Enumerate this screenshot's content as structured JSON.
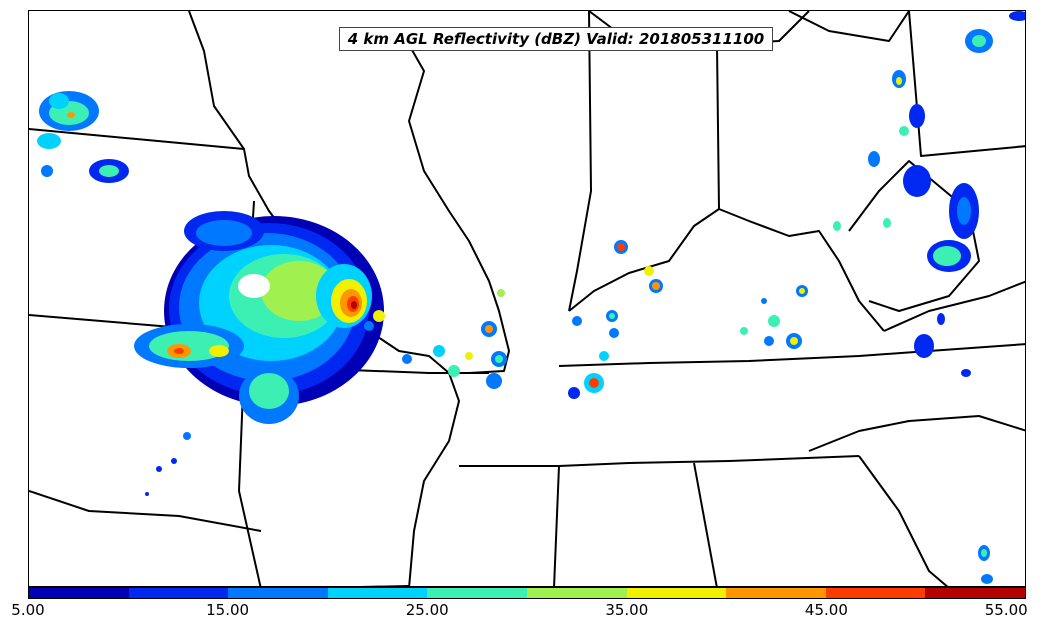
{
  "title": "4 km AGL Reflectivity (dBZ) Valid: 201805311100",
  "colorbar": {
    "colors": [
      "#0000b4",
      "#0028f0",
      "#0078ff",
      "#00d2ff",
      "#3cf0b4",
      "#a0f050",
      "#f0f000",
      "#ff9600",
      "#ff3c00",
      "#b40000"
    ],
    "tick_labels": [
      "5.00",
      "15.00",
      "25.00",
      "35.00",
      "45.00",
      "55.00"
    ]
  },
  "map_style": {
    "boundary_color": "#000000"
  }
}
